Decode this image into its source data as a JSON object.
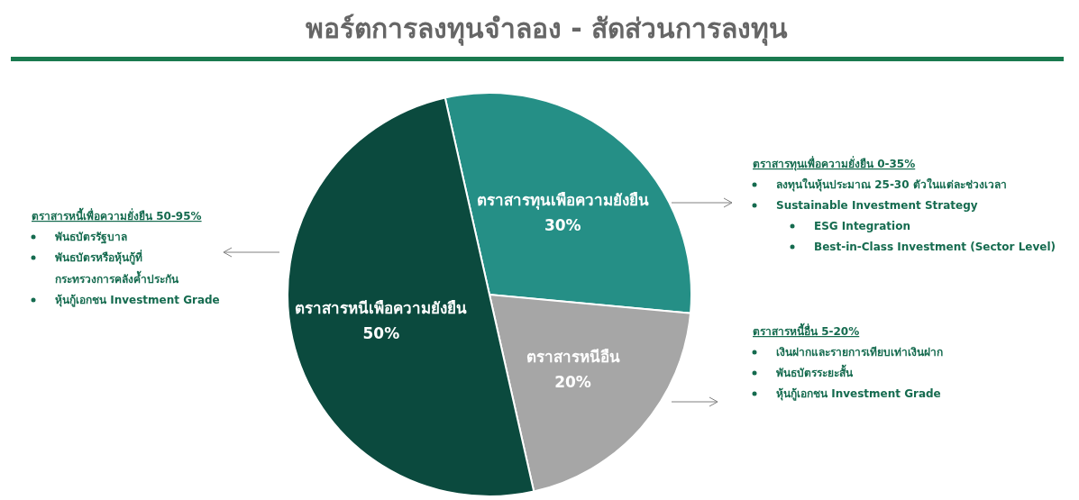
{
  "chart_data": {
    "type": "pie",
    "title": "พอร์ตการลงทุนจำลอง - สัดส่วนการลงทุน",
    "categories": [
      "ตราสารทุนเพือความยังยืน",
      "ตราสารหนีอืน",
      "ตราสารหนีเพือความยังยืน"
    ],
    "values": [
      30,
      20,
      50
    ],
    "colors": [
      "#258f86",
      "#a6a6a6",
      "#0b4a3e"
    ],
    "value_labels": [
      "30%",
      "20%",
      "50%"
    ],
    "annotations": [
      "ตราสารหนี้เพื่อความยั่งยืน 50-95%",
      "พันธบัตรรัฐบาล",
      "พันธบัตรหรือหุ้นกู้ที่\nกระทรวงการคลังค้ำประกัน",
      "หุ้นกู้เอกชน Investment Grade",
      "ตราสารทุนเพื่อความยั่งยืน 0-35%",
      "ลงทุนในหุ้นประมาณ 25-30 ตัวในแต่ละช่วงเวลา",
      "Sustainable Investment Strategy",
      "ESG Integration",
      "Best-in-Class Investment (Sector Level)",
      "ตราสารหนี้อื่น 5-20%",
      "เงินฝากและรายการเทียบเท่าเงินฝาก",
      "พันธบัตรระยะสั้น",
      "หุ้นกู้เอกชน Investment Grade"
    ]
  }
}
